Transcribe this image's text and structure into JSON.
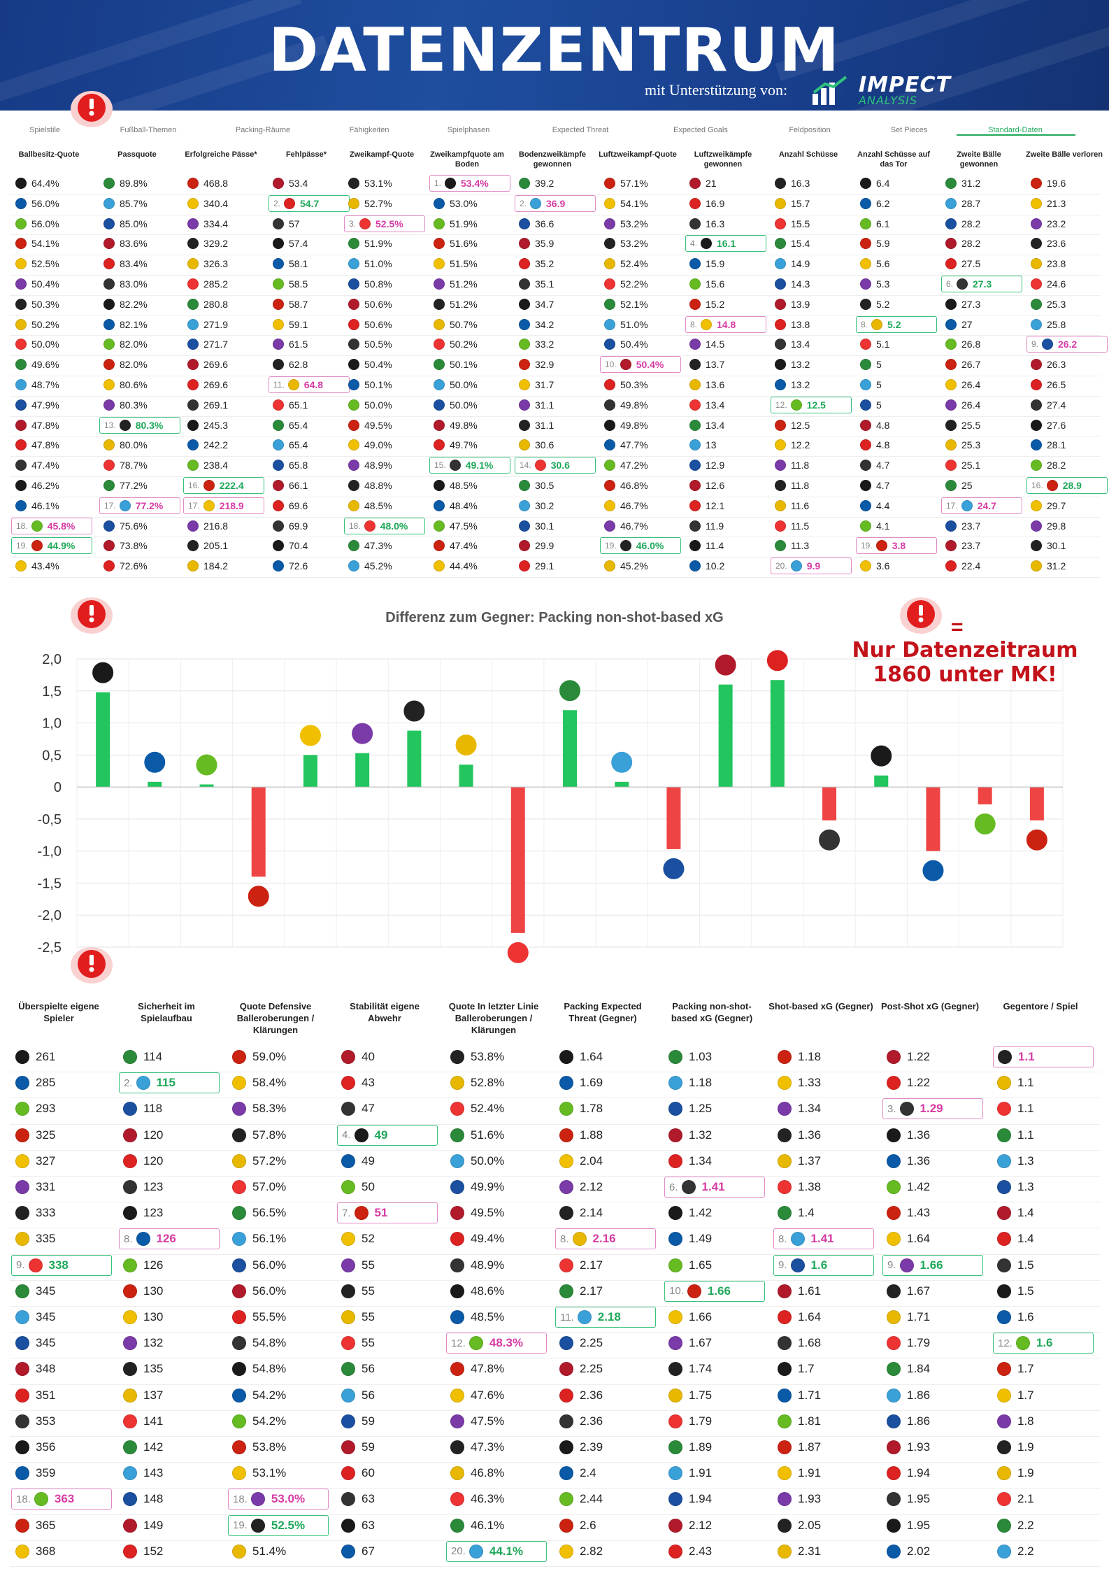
{
  "header": {
    "title": "DATENZENTRUM",
    "subtitle": "mit Unterstützung von:",
    "logo_text": "IMPECT",
    "logo_sub": "ANALYSIS"
  },
  "tabs": [
    {
      "label": "Spielstile"
    },
    {
      "label": "Fußball-Themen"
    },
    {
      "label": "Packing-Räume"
    },
    {
      "label": "Fähigkeiten"
    },
    {
      "label": "Spielphasen"
    },
    {
      "label": "Expected Threat"
    },
    {
      "label": "Expected Goals"
    },
    {
      "label": "Feldposition"
    },
    {
      "label": "Set Pieces"
    },
    {
      "label": "Standard-Daten",
      "active": true
    }
  ],
  "colors": {
    "header_bg": "#183f8d",
    "highlight_green": "#36c27a",
    "highlight_pink": "#e28ac6",
    "bar_positive": "#22c55e",
    "bar_negative": "#ef4444",
    "note_red": "#c3121a"
  },
  "icons": [
    "alert-icon",
    "club-crest-icon",
    "impect-logo-icon"
  ],
  "table1": {
    "columns": [
      "Ballbesitz-Quote",
      "Passquote",
      "Erfolgreiche Pässe*",
      "Fehlpässe*",
      "Zweikampf-Quote",
      "Zweikampfquote am Boden",
      "Bodenzweikämpfe gewonnen",
      "Luftzweikampf-Quote",
      "Luftzweikämpfe gewonnen",
      "Anzahl Schüsse",
      "Anzahl Schüsse auf das Tor",
      "Zweite Bälle gewonnen",
      "Zweite Bälle verloren"
    ],
    "rows": [
      [
        "64.4%",
        "89.8%",
        "468.8",
        "53.4",
        "53.1%",
        "53.4%",
        "39.2",
        "57.1%",
        "21",
        "16.3",
        "6.4",
        "31.2",
        "19.6"
      ],
      [
        "56.0%",
        "85.7%",
        "340.4",
        "54.7",
        "52.7%",
        "53.0%",
        "36.9",
        "54.1%",
        "16.9",
        "15.7",
        "6.2",
        "28.7",
        "21.3"
      ],
      [
        "56.0%",
        "85.0%",
        "334.4",
        "57",
        "52.5%",
        "51.9%",
        "36.6",
        "53.2%",
        "16.3",
        "15.5",
        "6.1",
        "28.2",
        "23.2"
      ],
      [
        "54.1%",
        "83.6%",
        "329.2",
        "57.4",
        "51.9%",
        "51.6%",
        "35.9",
        "53.2%",
        "16.1",
        "15.4",
        "5.9",
        "28.2",
        "23.6"
      ],
      [
        "52.5%",
        "83.4%",
        "326.3",
        "58.1",
        "51.0%",
        "51.5%",
        "35.2",
        "52.4%",
        "15.9",
        "14.9",
        "5.6",
        "27.5",
        "23.8"
      ],
      [
        "50.4%",
        "83.0%",
        "285.2",
        "58.5",
        "50.8%",
        "51.2%",
        "35.1",
        "52.2%",
        "15.6",
        "14.3",
        "5.3",
        "27.3",
        "24.6"
      ],
      [
        "50.3%",
        "82.2%",
        "280.8",
        "58.7",
        "50.6%",
        "51.2%",
        "34.7",
        "52.1%",
        "15.2",
        "13.9",
        "5.2",
        "27.3",
        "25.3"
      ],
      [
        "50.2%",
        "82.1%",
        "271.9",
        "59.1",
        "50.6%",
        "50.7%",
        "34.2",
        "51.0%",
        "14.8",
        "13.8",
        "5.2",
        "27",
        "25.8"
      ],
      [
        "50.0%",
        "82.0%",
        "271.7",
        "61.5",
        "50.5%",
        "50.2%",
        "33.2",
        "50.4%",
        "14.5",
        "13.4",
        "5.1",
        "26.8",
        "26.2"
      ],
      [
        "49.6%",
        "82.0%",
        "269.6",
        "62.8",
        "50.4%",
        "50.1%",
        "32.9",
        "50.4%",
        "13.7",
        "13.2",
        "5",
        "26.7",
        "26.3"
      ],
      [
        "48.7%",
        "80.6%",
        "269.6",
        "64.8",
        "50.1%",
        "50.0%",
        "31.7",
        "50.3%",
        "13.6",
        "13.2",
        "5",
        "26.4",
        "26.5"
      ],
      [
        "47.9%",
        "80.3%",
        "269.1",
        "65.1",
        "50.0%",
        "50.0%",
        "31.1",
        "49.8%",
        "13.4",
        "12.5",
        "5",
        "26.4",
        "27.4"
      ],
      [
        "47.8%",
        "80.3%",
        "245.3",
        "65.4",
        "49.5%",
        "49.8%",
        "31.1",
        "49.8%",
        "13.4",
        "12.5",
        "4.8",
        "25.5",
        "27.6"
      ],
      [
        "47.8%",
        "80.0%",
        "242.2",
        "65.4",
        "49.0%",
        "49.7%",
        "30.6",
        "47.7%",
        "13",
        "12.2",
        "4.8",
        "25.3",
        "28.1"
      ],
      [
        "47.4%",
        "78.7%",
        "238.4",
        "65.8",
        "48.9%",
        "49.1%",
        "30.6",
        "47.2%",
        "12.9",
        "11.8",
        "4.7",
        "25.1",
        "28.2"
      ],
      [
        "46.2%",
        "77.2%",
        "222.4",
        "66.1",
        "48.8%",
        "48.5%",
        "30.5",
        "46.8%",
        "12.6",
        "11.8",
        "4.7",
        "25",
        "28.9"
      ],
      [
        "46.1%",
        "77.2%",
        "218.9",
        "69.6",
        "48.5%",
        "48.4%",
        "30.2",
        "46.7%",
        "12.1",
        "11.6",
        "4.4",
        "24.7",
        "29.7"
      ],
      [
        "45.8%",
        "75.6%",
        "216.8",
        "69.9",
        "48.0%",
        "47.5%",
        "30.1",
        "46.7%",
        "11.9",
        "11.5",
        "4.1",
        "23.7",
        "29.8"
      ],
      [
        "44.9%",
        "73.8%",
        "205.1",
        "70.4",
        "47.3%",
        "47.4%",
        "29.9",
        "46.0%",
        "11.4",
        "11.3",
        "3.8",
        "23.7",
        "30.1"
      ],
      [
        "43.4%",
        "72.6%",
        "184.2",
        "72.6",
        "45.2%",
        "44.4%",
        "29.1",
        "45.2%",
        "10.2",
        "9.9",
        "3.6",
        "22.4",
        "31.2"
      ]
    ],
    "highlights": [
      {
        "row": 17,
        "col": 0,
        "rank": "18.",
        "style": "pink"
      },
      {
        "row": 18,
        "col": 0,
        "rank": "19.",
        "style": "green"
      },
      {
        "row": 12,
        "col": 1,
        "rank": "13.",
        "style": "green"
      },
      {
        "row": 16,
        "col": 1,
        "rank": "17.",
        "style": "pink"
      },
      {
        "row": 15,
        "col": 2,
        "rank": "16.",
        "style": "green"
      },
      {
        "row": 16,
        "col": 2,
        "rank": "17.",
        "style": "pink"
      },
      {
        "row": 1,
        "col": 3,
        "rank": "2.",
        "style": "green"
      },
      {
        "row": 10,
        "col": 3,
        "rank": "11.",
        "style": "pink"
      },
      {
        "row": 2,
        "col": 4,
        "rank": "3.",
        "style": "pink"
      },
      {
        "row": 17,
        "col": 4,
        "rank": "18.",
        "style": "green"
      },
      {
        "row": 0,
        "col": 5,
        "rank": "1.",
        "style": "pink"
      },
      {
        "row": 14,
        "col": 5,
        "rank": "15.",
        "style": "green"
      },
      {
        "row": 1,
        "col": 6,
        "rank": "2.",
        "style": "pink"
      },
      {
        "row": 14,
        "col": 6,
        "rank": "14.",
        "style": "green"
      },
      {
        "row": 9,
        "col": 7,
        "rank": "10.",
        "style": "pink"
      },
      {
        "row": 18,
        "col": 7,
        "rank": "19.",
        "style": "green"
      },
      {
        "row": 3,
        "col": 8,
        "rank": "4.",
        "style": "green"
      },
      {
        "row": 7,
        "col": 8,
        "rank": "8.",
        "style": "pink"
      },
      {
        "row": 11,
        "col": 9,
        "rank": "12.",
        "style": "green"
      },
      {
        "row": 19,
        "col": 9,
        "rank": "20.",
        "style": "pink"
      },
      {
        "row": 7,
        "col": 10,
        "rank": "8.",
        "style": "green"
      },
      {
        "row": 18,
        "col": 10,
        "rank": "19.",
        "style": "pink"
      },
      {
        "row": 5,
        "col": 11,
        "rank": "6.",
        "style": "green"
      },
      {
        "row": 16,
        "col": 11,
        "rank": "17.",
        "style": "pink"
      },
      {
        "row": 8,
        "col": 12,
        "rank": "9.",
        "style": "pink"
      },
      {
        "row": 15,
        "col": 12,
        "rank": "16.",
        "style": "green"
      }
    ]
  },
  "chart_data": {
    "type": "bar",
    "title": "Differenz zum Gegner: Packing non-shot-based xG",
    "xlabel": "",
    "ylabel": "",
    "ylim": [
      -2.5,
      2.0
    ],
    "yticks": [
      "2,0",
      "1,5",
      "1,0",
      "0,5",
      "0",
      "-0,5",
      "-1,0",
      "-1,5",
      "-2,0",
      "-2,5"
    ],
    "grid": true,
    "values": [
      1.48,
      0.08,
      0.04,
      -1.4,
      0.5,
      0.53,
      0.88,
      0.35,
      -2.28,
      1.2,
      0.08,
      -0.97,
      1.6,
      1.67,
      -0.52,
      0.18,
      -1.0,
      -0.27,
      -0.52
    ]
  },
  "note": {
    "eq": "=",
    "text": "Nur Datenzeitraum 1860 unter MK!"
  },
  "table2": {
    "columns": [
      "Überspielte eigene Spieler",
      "Sicherheit im Spielaufbau",
      "Quote Defensive Balleroberungen / Klärungen",
      "Stabilität eigene Abwehr",
      "Quote In letzter Linie Balleroberungen / Klärungen",
      "Packing Expected Threat (Gegner)",
      "Packing non-shot-based xG (Gegner)",
      "Shot-based xG (Gegner)",
      "Post-Shot xG (Gegner)",
      "Gegentore / Spiel"
    ],
    "rows": [
      [
        "261",
        "114",
        "59.0%",
        "40",
        "53.8%",
        "1.64",
        "1.03",
        "1.18",
        "1.22",
        "1.1"
      ],
      [
        "285",
        "115",
        "58.4%",
        "43",
        "52.8%",
        "1.69",
        "1.18",
        "1.33",
        "1.22",
        "1.1"
      ],
      [
        "293",
        "118",
        "58.3%",
        "47",
        "52.4%",
        "1.78",
        "1.25",
        "1.34",
        "1.29",
        "1.1"
      ],
      [
        "325",
        "120",
        "57.8%",
        "49",
        "51.6%",
        "1.88",
        "1.32",
        "1.36",
        "1.36",
        "1.1"
      ],
      [
        "327",
        "120",
        "57.2%",
        "49",
        "50.0%",
        "2.04",
        "1.34",
        "1.37",
        "1.36",
        "1.3"
      ],
      [
        "331",
        "123",
        "57.0%",
        "50",
        "49.9%",
        "2.12",
        "1.41",
        "1.38",
        "1.42",
        "1.3"
      ],
      [
        "333",
        "123",
        "56.5%",
        "51",
        "49.5%",
        "2.14",
        "1.42",
        "1.4",
        "1.43",
        "1.4"
      ],
      [
        "335",
        "126",
        "56.1%",
        "52",
        "49.4%",
        "2.16",
        "1.49",
        "1.41",
        "1.64",
        "1.4"
      ],
      [
        "338",
        "126",
        "56.0%",
        "55",
        "48.9%",
        "2.17",
        "1.65",
        "1.6",
        "1.66",
        "1.5"
      ],
      [
        "345",
        "130",
        "56.0%",
        "55",
        "48.6%",
        "2.17",
        "1.66",
        "1.61",
        "1.67",
        "1.5"
      ],
      [
        "345",
        "130",
        "55.5%",
        "55",
        "48.5%",
        "2.18",
        "1.66",
        "1.64",
        "1.71",
        "1.6"
      ],
      [
        "345",
        "132",
        "54.8%",
        "55",
        "48.3%",
        "2.25",
        "1.67",
        "1.68",
        "1.79",
        "1.6"
      ],
      [
        "348",
        "135",
        "54.8%",
        "56",
        "47.8%",
        "2.25",
        "1.74",
        "1.7",
        "1.84",
        "1.7"
      ],
      [
        "351",
        "137",
        "54.2%",
        "56",
        "47.6%",
        "2.36",
        "1.75",
        "1.71",
        "1.86",
        "1.7"
      ],
      [
        "353",
        "141",
        "54.2%",
        "59",
        "47.5%",
        "2.36",
        "1.79",
        "1.81",
        "1.86",
        "1.8"
      ],
      [
        "356",
        "142",
        "53.8%",
        "59",
        "47.3%",
        "2.39",
        "1.89",
        "1.87",
        "1.93",
        "1.9"
      ],
      [
        "359",
        "143",
        "53.1%",
        "60",
        "46.8%",
        "2.4",
        "1.91",
        "1.91",
        "1.94",
        "1.9"
      ],
      [
        "363",
        "148",
        "53.0%",
        "63",
        "46.3%",
        "2.44",
        "1.94",
        "1.93",
        "1.95",
        "2.1"
      ],
      [
        "365",
        "149",
        "52.5%",
        "63",
        "46.1%",
        "2.6",
        "2.12",
        "2.05",
        "1.95",
        "2.2"
      ],
      [
        "368",
        "152",
        "51.4%",
        "67",
        "44.1%",
        "2.82",
        "2.43",
        "2.31",
        "2.02",
        "2.2"
      ]
    ],
    "highlights": [
      {
        "row": 8,
        "col": 0,
        "rank": "9.",
        "style": "green"
      },
      {
        "row": 17,
        "col": 0,
        "rank": "18.",
        "style": "pink"
      },
      {
        "row": 1,
        "col": 1,
        "rank": "2.",
        "style": "green"
      },
      {
        "row": 7,
        "col": 1,
        "rank": "8.",
        "style": "pink"
      },
      {
        "row": 17,
        "col": 2,
        "rank": "18.",
        "style": "pink"
      },
      {
        "row": 18,
        "col": 2,
        "rank": "19.",
        "style": "green"
      },
      {
        "row": 3,
        "col": 3,
        "rank": "4.",
        "style": "green"
      },
      {
        "row": 6,
        "col": 3,
        "rank": "7.",
        "style": "pink"
      },
      {
        "row": 11,
        "col": 4,
        "rank": "12.",
        "style": "pink"
      },
      {
        "row": 19,
        "col": 4,
        "rank": "20.",
        "style": "green"
      },
      {
        "row": 7,
        "col": 5,
        "rank": "8.",
        "style": "pink"
      },
      {
        "row": 10,
        "col": 5,
        "rank": "11.",
        "style": "green"
      },
      {
        "row": 5,
        "col": 6,
        "rank": "6.",
        "style": "pink"
      },
      {
        "row": 9,
        "col": 6,
        "rank": "10.",
        "style": "green"
      },
      {
        "row": 7,
        "col": 7,
        "rank": "8.",
        "style": "pink"
      },
      {
        "row": 8,
        "col": 7,
        "rank": "9.",
        "style": "green"
      },
      {
        "row": 2,
        "col": 8,
        "rank": "3.",
        "style": "pink"
      },
      {
        "row": 8,
        "col": 8,
        "rank": "9.",
        "style": "green"
      },
      {
        "row": 0,
        "col": 9,
        "rank": "",
        "style": "pink"
      },
      {
        "row": 11,
        "col": 9,
        "rank": "12.",
        "style": "green"
      }
    ]
  }
}
